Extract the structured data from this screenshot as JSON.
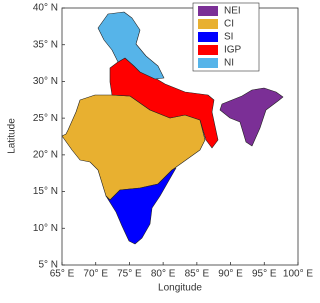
{
  "chart_data": {
    "type": "map",
    "xlabel": "Longitude",
    "ylabel": "Latitude",
    "xlim": [
      65,
      100
    ],
    "ylim": [
      5,
      40
    ],
    "xticks": [
      {
        "value": 65,
        "label": "65° E"
      },
      {
        "value": 70,
        "label": "70° E"
      },
      {
        "value": 75,
        "label": "75° E"
      },
      {
        "value": 80,
        "label": "80° E"
      },
      {
        "value": 85,
        "label": "85° E"
      },
      {
        "value": 90,
        "label": "90° E"
      },
      {
        "value": 95,
        "label": "95° E"
      },
      {
        "value": 100,
        "label": "100° E"
      }
    ],
    "yticks": [
      {
        "value": 5,
        "label": "5° N"
      },
      {
        "value": 10,
        "label": "10° N"
      },
      {
        "value": 15,
        "label": "15° N"
      },
      {
        "value": 20,
        "label": "20° N"
      },
      {
        "value": 25,
        "label": "25° N"
      },
      {
        "value": 30,
        "label": "30° N"
      },
      {
        "value": 35,
        "label": "35° N"
      },
      {
        "value": 40,
        "label": "40° N"
      }
    ],
    "legend_position": "upper right",
    "regions": [
      {
        "name": "NEI",
        "color": "#7b2f96"
      },
      {
        "name": "CI",
        "color": "#e8b030"
      },
      {
        "name": "SI",
        "color": "#0000ff"
      },
      {
        "name": "IGP",
        "color": "#ff0000"
      },
      {
        "name": "NI",
        "color": "#56b4e9"
      }
    ]
  }
}
